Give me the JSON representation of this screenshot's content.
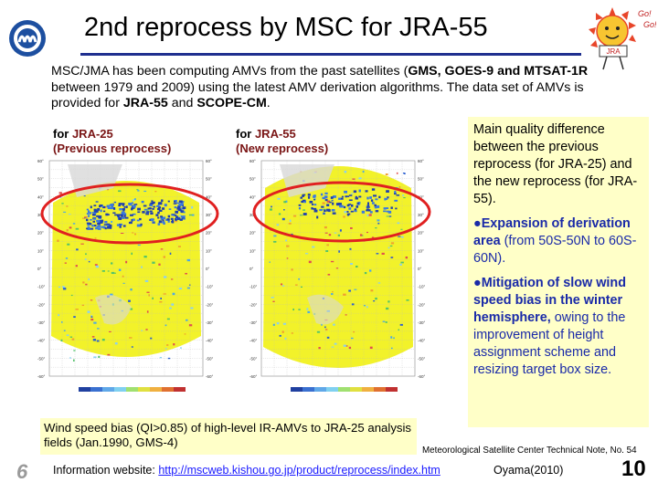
{
  "header": {
    "title": "2nd reprocess by MSC for JRA-55",
    "logo_icon": "msc-logo-icon",
    "mascot_icon": "sun-mascot-icon",
    "mascot_text_1": "Go!",
    "mascot_text_2": "Go!",
    "mascot_banner": "JRA"
  },
  "intro": {
    "p1": "MSC/JMA has been computing AMVs from the past satellites (",
    "sat1": "GMS, GOES-9 and MTSAT-1R",
    "p2": " between 1979 and 2009) using the latest AMV derivation algorithms. The data set of AMVs is provided for ",
    "jra": "JRA-55",
    "p3": " and ",
    "scope": "SCOPE-CM",
    "p4": "."
  },
  "maps": {
    "left": {
      "label_prefix": "for ",
      "label_name": "JRA-25",
      "label_sub": "(Previous reprocess)"
    },
    "right": {
      "label_prefix": "for ",
      "label_name": "JRA-55",
      "label_sub": "(New reprocess)"
    },
    "lat_labels": [
      "60°",
      "55°",
      "50°",
      "45°",
      "40°",
      "35°",
      "30°",
      "25°",
      "20°",
      "15°",
      "10°",
      "5°",
      "0°",
      "-5°",
      "-10°",
      "-15°",
      "-20°",
      "-25°",
      "-30°",
      "-35°",
      "-40°",
      "-45°",
      "-50°",
      "-55°",
      "-60°"
    ]
  },
  "side": {
    "intro": "Main quality difference between the previous reprocess (for JRA-25) and the new reprocess (for JRA-55).",
    "b1_bold": "Expansion of derivation area",
    "b1_rest": " (from 50S-50N to 60S-60N).",
    "b2_bold": "Mitigation of slow wind speed bias in the winter hemisphere,",
    "b2_rest": " owing to the improvement of height assignment scheme and resizing target box size."
  },
  "caption": "Wind speed bias (QI>0.85) of high-level IR-AMVs to JRA-25 analysis fields (Jan.1990, GMS-4)",
  "footer": {
    "reference": "Meteorological Satellite Center Technical Note, No. 54",
    "left_page": "6",
    "info_prefix": "Information website: ",
    "info_url": "http://mscweb.kishou.go.jp/product/reprocess/index.htm",
    "author": "Oyama(2010)",
    "right_page": "10"
  },
  "colors": {
    "title_rule": "#1f2f8f",
    "map_fill": "#f2f22a",
    "highlight_ellipse": "#e02020",
    "side_box": "#ffffc8",
    "accent_blue": "#1a2aa8"
  }
}
